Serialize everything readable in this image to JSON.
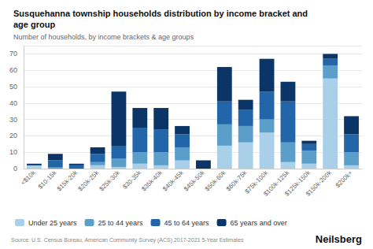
{
  "chart_data": {
    "type": "bar",
    "title": "Susquehanna township households distribution by income bracket and\nage group",
    "subtitle": "Number of households, by income brackets & age groups",
    "annotations": [
      "Source: U.S. Census Bureau, American Community Survey (ACS) 2017-2021 5-Year Estimates",
      "Neilsberg"
    ],
    "categories": [
      "<$10k",
      "$10-15k",
      "$15k-20k",
      "$20k-25k",
      "$25k-30k",
      "$30-35k",
      "$35k-40k",
      "$40k-45k",
      "$45k-50k",
      "$50k-60k",
      "$60k-75k",
      "$75k-100k",
      "$100k-125k",
      "$125k-150k",
      "$150k-200k",
      "$200k+"
    ],
    "series": [
      {
        "name": "Under 25 years",
        "color": "#aacfe8",
        "values": [
          2,
          0,
          0,
          2,
          1,
          3,
          2,
          5,
          0,
          14,
          16,
          22,
          4,
          3,
          55,
          2
        ]
      },
      {
        "name": "25 to 44 years",
        "color": "#5b9ec9",
        "values": [
          0,
          1,
          0,
          2,
          5,
          7,
          8,
          8,
          0,
          13,
          10,
          8,
          12,
          8,
          8,
          8
        ]
      },
      {
        "name": "45 to 64 years",
        "color": "#2265a8",
        "values": [
          0,
          4,
          2,
          5,
          8,
          15,
          14,
          8,
          0,
          14,
          10,
          17,
          25,
          4,
          4,
          11
        ]
      },
      {
        "name": "65 years and over",
        "color": "#0a3566",
        "values": [
          1,
          4,
          1,
          4,
          33,
          12,
          13,
          5,
          5,
          21,
          6,
          20,
          12,
          2,
          3,
          11
        ]
      }
    ],
    "stacked": true,
    "ylim": [
      0,
      75
    ],
    "yticks": [
      0,
      10,
      20,
      30,
      40,
      50,
      60,
      70
    ],
    "grid": true,
    "legend": "bottom"
  }
}
